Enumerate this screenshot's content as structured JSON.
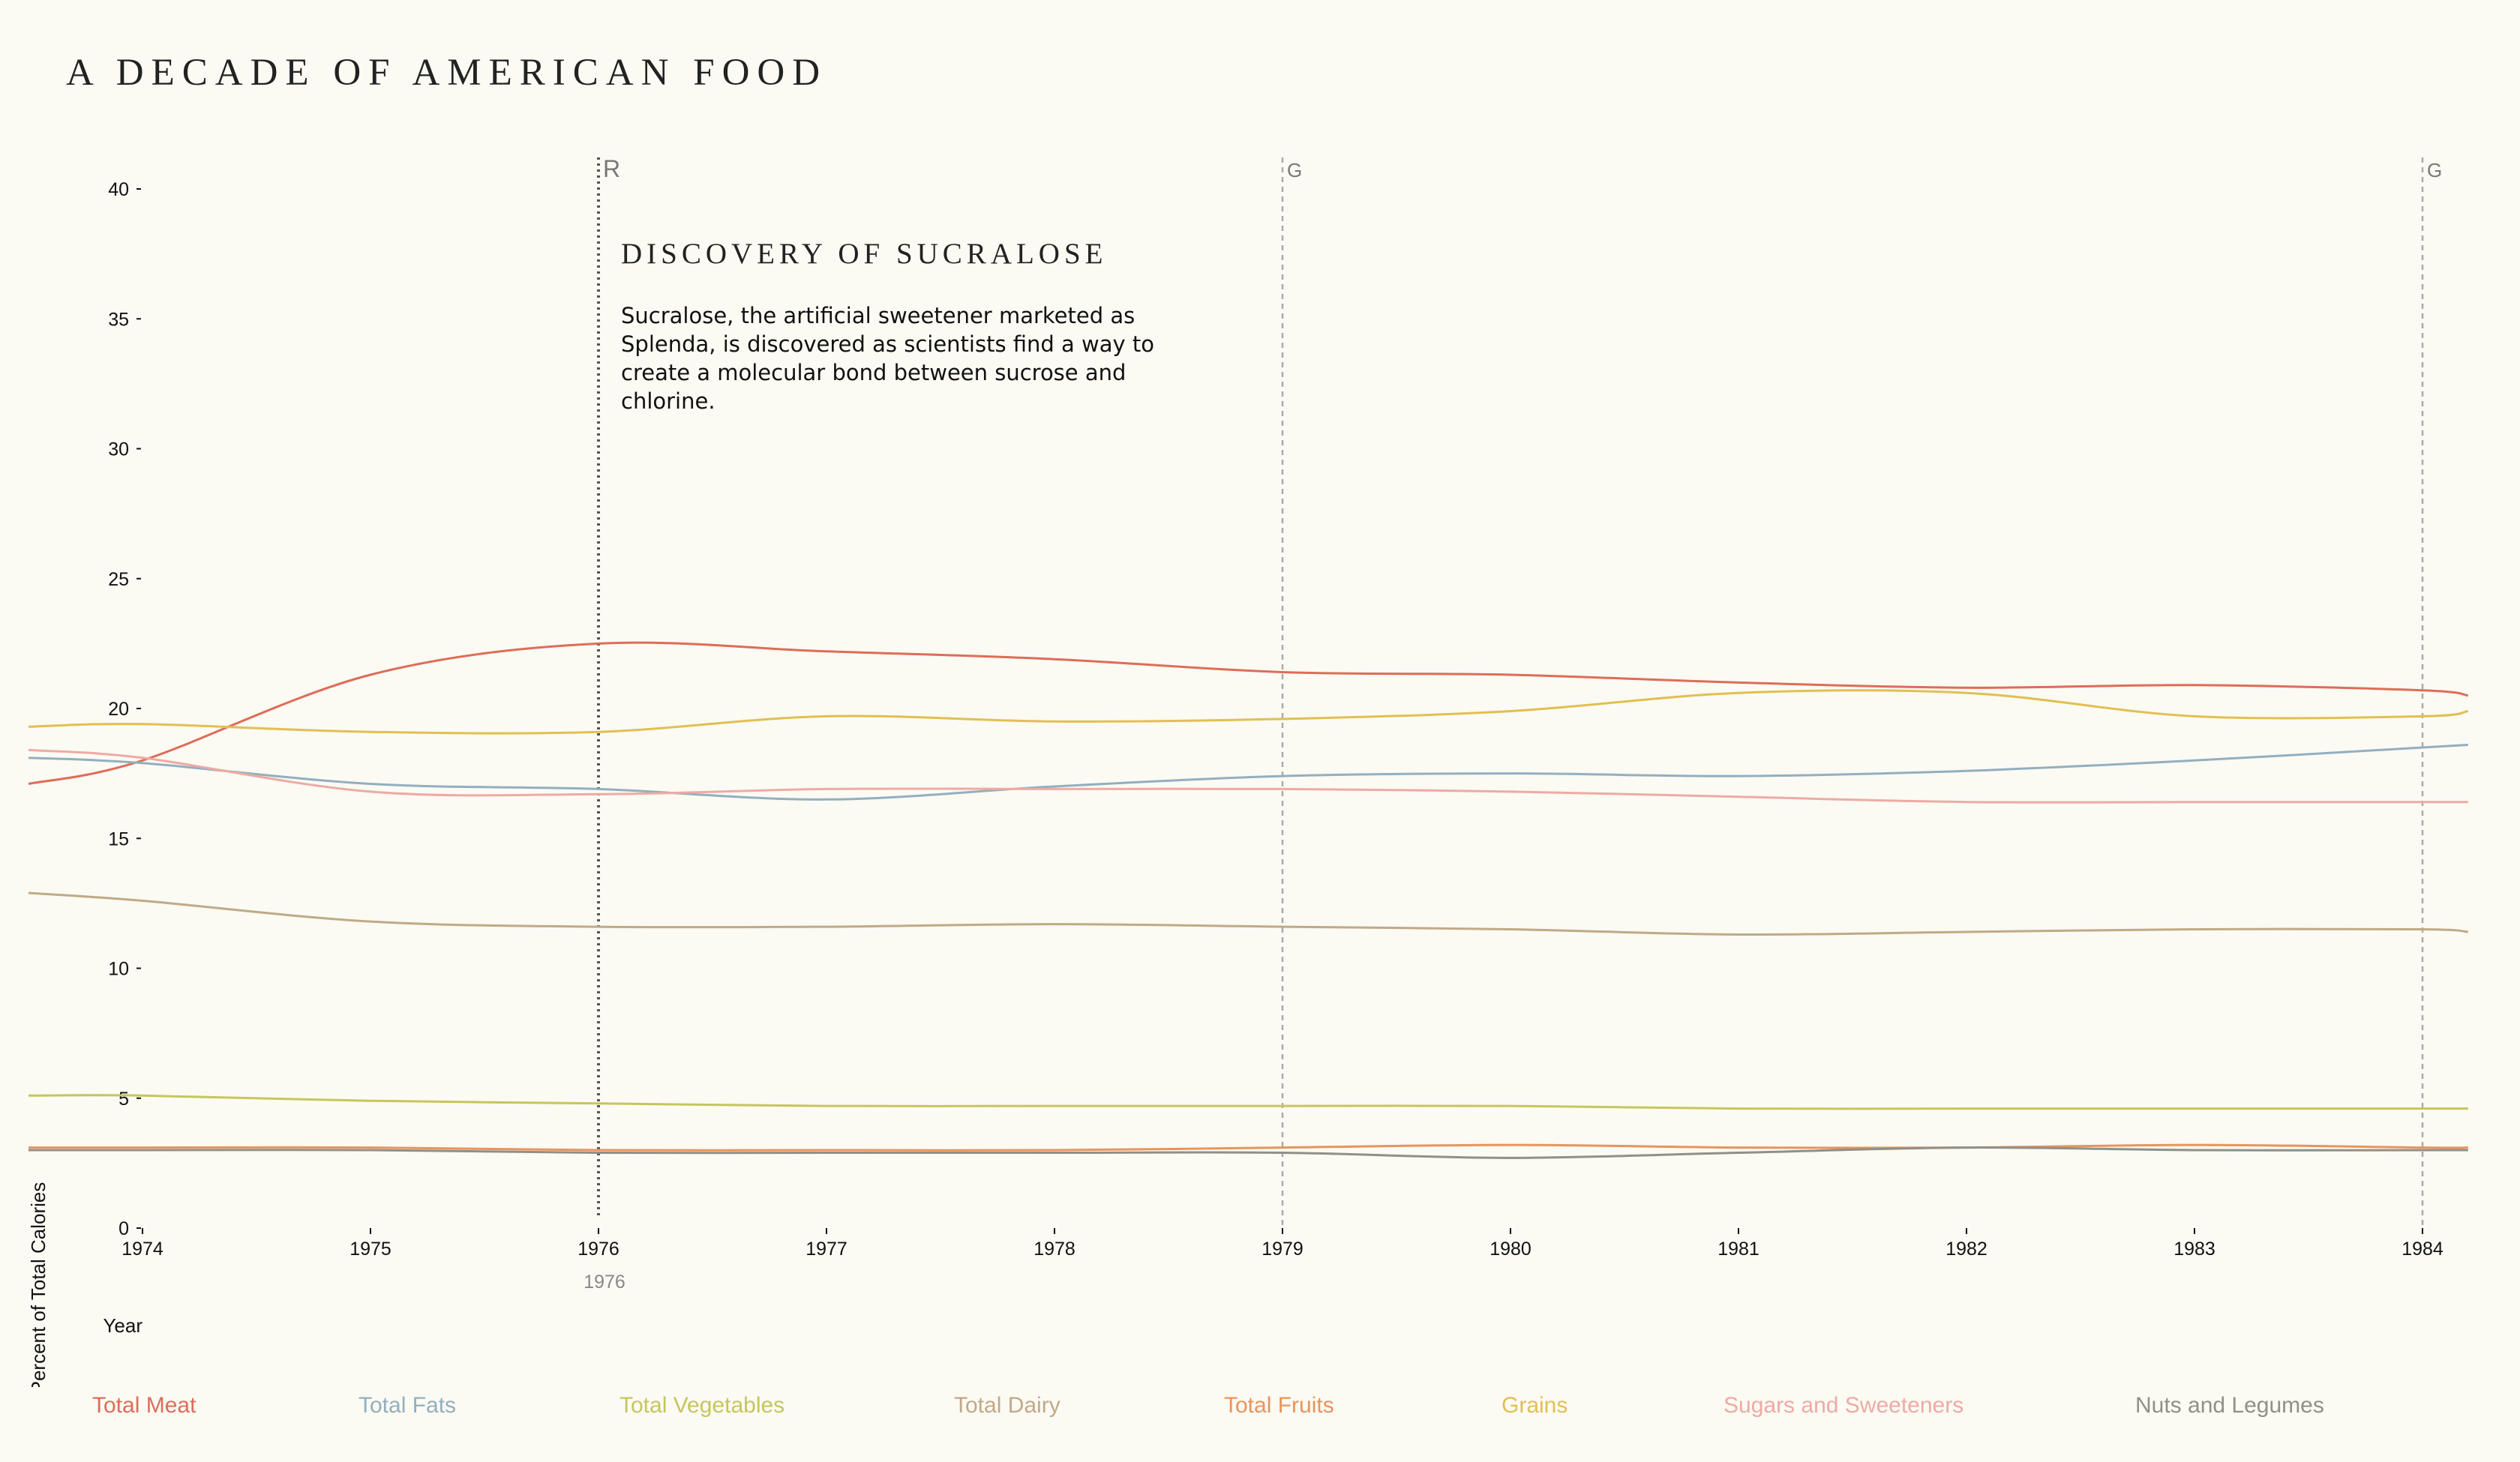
{
  "title": "A DECADE OF AMERICAN FOOD",
  "event": {
    "marker": "R",
    "year_label": "1976",
    "title": "DISCOVERY OF SUCRALOSE",
    "description": "Sucralose, the artificial sweetener marketed as Splenda, is discovered as scientists find a way to create a molecular bond between sucrose and chlorine."
  },
  "markers": [
    {
      "year": 1976,
      "label": "R",
      "style": "dark-dotted"
    },
    {
      "year": 1979,
      "label": "G",
      "style": "light-dashed"
    },
    {
      "year": 1984,
      "label": "G",
      "style": "light-dashed"
    }
  ],
  "chart_data": {
    "type": "line",
    "xlabel": "Year",
    "ylabel": "Percent of Total Calories",
    "ylim": [
      0,
      40
    ],
    "yticks": [
      0,
      5,
      10,
      15,
      20,
      25,
      30,
      35,
      40
    ],
    "xticks": [
      "1974",
      "1975",
      "1976",
      "1977",
      "1978",
      "1979",
      "1980",
      "1981",
      "1982",
      "1983",
      "1984"
    ],
    "x": [
      1973.5,
      1974,
      1975,
      1976,
      1977,
      1978,
      1979,
      1980,
      1981,
      1982,
      1983,
      1984,
      1984.2
    ],
    "legend_position": "bottom",
    "series": [
      {
        "name": "Total Meat",
        "color": "#dd6d58",
        "values": [
          17.1,
          18.0,
          21.3,
          22.5,
          22.2,
          21.9,
          21.4,
          21.3,
          21.0,
          20.8,
          20.9,
          20.7,
          20.5
        ]
      },
      {
        "name": "Total Fats",
        "color": "#92afbf",
        "values": [
          18.1,
          17.9,
          17.1,
          16.9,
          16.5,
          17.0,
          17.4,
          17.5,
          17.4,
          17.6,
          18.0,
          18.5,
          18.6
        ]
      },
      {
        "name": "Total Vegetables",
        "color": "#c5c65c",
        "values": [
          5.1,
          5.1,
          4.9,
          4.8,
          4.7,
          4.7,
          4.7,
          4.7,
          4.6,
          4.6,
          4.6,
          4.6,
          4.6
        ]
      },
      {
        "name": "Total Dairy",
        "color": "#c1a988",
        "values": [
          12.9,
          12.6,
          11.8,
          11.6,
          11.6,
          11.7,
          11.6,
          11.5,
          11.3,
          11.4,
          11.5,
          11.5,
          11.4
        ]
      },
      {
        "name": "Total Fruits",
        "color": "#e8945b",
        "values": [
          3.1,
          3.1,
          3.1,
          3.0,
          3.0,
          3.0,
          3.1,
          3.2,
          3.1,
          3.1,
          3.2,
          3.1,
          3.1
        ]
      },
      {
        "name": "Grains",
        "color": "#e1bf52",
        "values": [
          19.3,
          19.4,
          19.1,
          19.1,
          19.7,
          19.5,
          19.6,
          19.9,
          20.6,
          20.6,
          19.7,
          19.7,
          19.9
        ]
      },
      {
        "name": "Sugars and Sweeteners",
        "color": "#eeaaa4",
        "values": [
          18.4,
          18.1,
          16.8,
          16.7,
          16.9,
          16.9,
          16.9,
          16.8,
          16.6,
          16.4,
          16.4,
          16.4,
          16.4
        ]
      },
      {
        "name": "Nuts and Legumes",
        "color": "#909087",
        "values": [
          3.0,
          3.0,
          3.0,
          2.9,
          2.9,
          2.9,
          2.9,
          2.7,
          2.9,
          3.1,
          3.0,
          3.0,
          3.0
        ]
      }
    ]
  }
}
